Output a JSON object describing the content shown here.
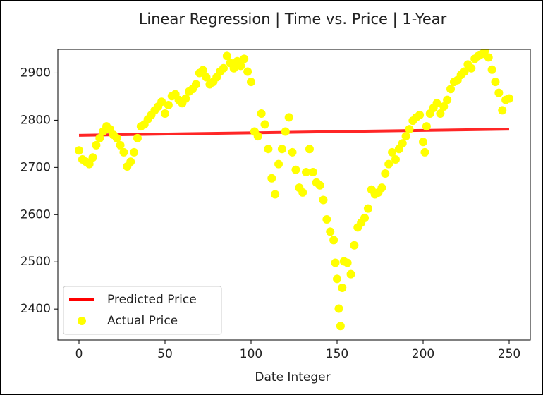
{
  "chart_data": {
    "type": "scatter",
    "title": "Linear Regression | Time vs. Price | 1-Year",
    "xlabel": "Date Integer",
    "xlim": [
      -12.3,
      262.3
    ],
    "ylim": [
      2334.5,
      2950
    ],
    "xticks": [
      0,
      50,
      100,
      150,
      200,
      250
    ],
    "yticks": [
      2400,
      2500,
      2600,
      2700,
      2800,
      2900
    ],
    "grid": false,
    "legend": "lower left",
    "series": [
      {
        "name": "Predicted Price",
        "color": "#ff0000",
        "type": "line",
        "x": [
          0,
          250
        ],
        "values": [
          2768,
          2781
        ]
      },
      {
        "name": "Actual Price",
        "color": "#ffff00",
        "type": "scatter",
        "x": [
          0,
          2,
          4,
          6,
          8,
          10,
          12,
          14,
          16,
          18,
          20,
          22,
          24,
          26,
          28,
          30,
          32,
          34,
          36,
          38,
          40,
          42,
          44,
          46,
          48,
          50,
          52,
          54,
          56,
          58,
          60,
          62,
          64,
          66,
          68,
          70,
          72,
          74,
          76,
          78,
          80,
          82,
          84,
          86,
          88,
          90,
          92,
          94,
          96,
          98,
          100,
          102,
          104,
          106,
          108,
          110,
          112,
          114,
          116,
          118,
          120,
          122,
          124,
          126,
          128,
          130,
          132,
          134,
          136,
          138,
          140,
          142,
          144,
          146,
          148,
          149,
          150,
          151,
          152,
          153,
          154,
          156,
          158,
          160,
          162,
          164,
          166,
          168,
          170,
          172,
          174,
          176,
          178,
          180,
          182,
          184,
          186,
          188,
          190,
          192,
          194,
          196,
          198,
          200,
          201,
          202,
          204,
          206,
          208,
          210,
          212,
          214,
          216,
          218,
          220,
          222,
          224,
          226,
          228,
          230,
          232,
          234,
          236,
          238,
          240,
          242,
          244,
          246,
          248,
          250
        ],
        "values": [
          2736,
          2717,
          2712,
          2707,
          2721,
          2747,
          2762,
          2776,
          2787,
          2781,
          2769,
          2762,
          2747,
          2732,
          2702,
          2712,
          2732,
          2762,
          2787,
          2791,
          2802,
          2811,
          2821,
          2829,
          2839,
          2814,
          2832,
          2851,
          2855,
          2843,
          2836,
          2846,
          2861,
          2866,
          2876,
          2900,
          2906,
          2891,
          2876,
          2881,
          2891,
          2903,
          2910,
          2936,
          2921,
          2910,
          2925,
          2915,
          2930,
          2903,
          2881,
          2776,
          2766,
          2814,
          2791,
          2739,
          2677,
          2643,
          2707,
          2739,
          2776,
          2806,
          2732,
          2695,
          2657,
          2647,
          2690,
          2739,
          2690,
          2668,
          2662,
          2631,
          2590,
          2564,
          2546,
          2498,
          2464,
          2401,
          2364,
          2445,
          2501,
          2498,
          2474,
          2535,
          2573,
          2583,
          2593,
          2613,
          2653,
          2643,
          2647,
          2657,
          2687,
          2707,
          2732,
          2717,
          2739,
          2751,
          2766,
          2781,
          2799,
          2806,
          2811,
          2754,
          2732,
          2787,
          2814,
          2826,
          2836,
          2814,
          2829,
          2843,
          2866,
          2881,
          2885,
          2896,
          2903,
          2918,
          2910,
          2930,
          2936,
          2940,
          2948,
          2933,
          2907,
          2881,
          2858,
          2821,
          2843,
          2846
        ]
      }
    ]
  }
}
